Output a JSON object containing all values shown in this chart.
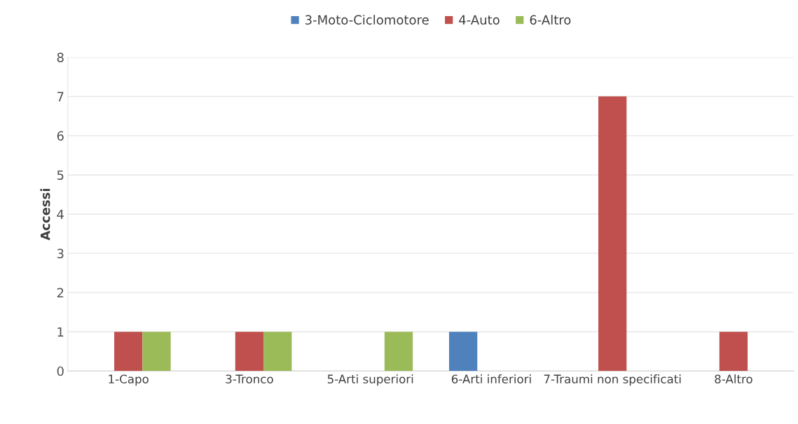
{
  "chart_data": {
    "type": "bar",
    "ylabel": "Accessi",
    "categories": [
      "1-Capo",
      "3-Tronco",
      "5-Arti superiori",
      "6-Arti inferiori",
      "7-Traumi non specificati",
      "8-Altro"
    ],
    "series": [
      {
        "name": "3-Moto-Ciclomotore",
        "color": "#4f81bd",
        "values": [
          null,
          null,
          null,
          1,
          null,
          null
        ]
      },
      {
        "name": "4-Auto",
        "color": "#c0504d",
        "values": [
          1,
          1,
          null,
          null,
          7,
          1
        ]
      },
      {
        "name": "6-Altro",
        "color": "#9bbb59",
        "values": [
          1,
          1,
          1,
          null,
          null,
          null
        ]
      }
    ],
    "ylim": [
      0,
      8
    ],
    "yticks": [
      0,
      1,
      2,
      3,
      4,
      5,
      6,
      7,
      8
    ],
    "grid": "y",
    "legend": "top"
  }
}
